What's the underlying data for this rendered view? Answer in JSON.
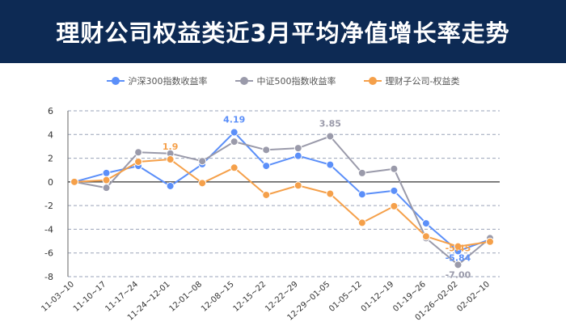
{
  "header": {
    "title": "理财公司权益类近3月平均净值增长率走势"
  },
  "chart_data": {
    "type": "line",
    "title": "理财公司权益类近3月平均净值增长率走势",
    "xlabel": "",
    "ylabel": "",
    "ylim": [
      -8,
      6
    ],
    "yticks": [
      -8,
      -6,
      -4,
      -2,
      0,
      2,
      4,
      6
    ],
    "grid": true,
    "legend_position": "top-center",
    "x": [
      "11-03~10",
      "11-10~17",
      "11-17~24",
      "11-24~12-01",
      "12-01~08",
      "12-08~15",
      "12-15~22",
      "12-22~29",
      "12-29~01-05",
      "01-05~12",
      "01-12~19",
      "01-19~26",
      "01-26~02-02",
      "02-02~10"
    ],
    "series": [
      {
        "name": "沪深300指数收益率",
        "color": "#5b8ff9",
        "values": [
          0,
          0.75,
          1.35,
          -0.35,
          1.5,
          4.19,
          1.35,
          2.2,
          1.45,
          -1.05,
          -0.75,
          -3.5,
          -5.84,
          -4.85
        ],
        "labels": [
          {
            "index": 5,
            "text": "4.19"
          },
          {
            "index": 12,
            "text": "-5.84"
          }
        ]
      },
      {
        "name": "中证500指数收益率",
        "color": "#9a9aaa",
        "values": [
          0,
          -0.5,
          2.5,
          2.4,
          1.75,
          3.4,
          2.7,
          2.85,
          3.85,
          0.75,
          1.1,
          -4.75,
          -7.0,
          -4.75
        ],
        "labels": [
          {
            "index": 8,
            "text": "3.85"
          },
          {
            "index": 12,
            "text": "-7.00"
          }
        ]
      },
      {
        "name": "理财子公司-权益类",
        "color": "#f5a04a",
        "values": [
          0,
          0.15,
          1.7,
          1.9,
          -0.1,
          1.2,
          -1.1,
          -0.3,
          -1.0,
          -3.45,
          -2.05,
          -4.6,
          -5.45,
          -5.05
        ],
        "labels": [
          {
            "index": 3,
            "text": "1.9"
          },
          {
            "index": 12,
            "text": "-5.45"
          }
        ]
      }
    ]
  }
}
